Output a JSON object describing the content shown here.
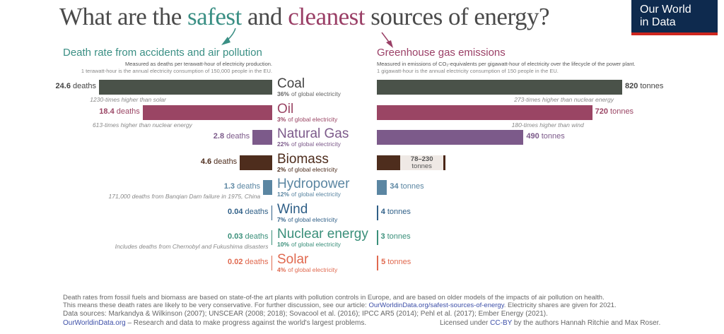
{
  "title": {
    "pre": "What are the ",
    "safest": "safest",
    "mid": " and ",
    "cleanest": "cleanest",
    "post": " sources of energy?"
  },
  "logo": {
    "line1": "Our World",
    "line2": "in Data"
  },
  "left_panel": {
    "title": "Death rate from accidents and air pollution",
    "sub1": "Measured as deaths per terawatt-hour of electricity production.",
    "sub2": "1 terawatt-hour is the annual electricity consumption of 150,000 people in the EU."
  },
  "right_panel": {
    "title": "Greenhouse gas emissions",
    "sub1": "Measured in emissions of CO₂-equivalents per gigawatt-hour of electricity over the lifecycle of the power plant.",
    "sub2": "1 gigawatt-hour is the annual electricity consumption of 150 people in the EU."
  },
  "chart_data": {
    "type": "bar",
    "units": {
      "deaths": "deaths",
      "emissions": "tonnes"
    },
    "share_suffix": "of global electricity",
    "categories": [
      "Coal",
      "Oil",
      "Natural Gas",
      "Biomass",
      "Hydropower",
      "Wind",
      "Nuclear energy",
      "Solar"
    ],
    "rows": [
      {
        "name": "Coal",
        "color": "#4a5249",
        "deaths": 24.6,
        "deaths_label": "24.6",
        "emissions": 820,
        "emissions_label": "820",
        "share": "36%",
        "death_note": "1230-times higher than solar",
        "emission_note": "273-times higher than nuclear energy"
      },
      {
        "name": "Oil",
        "color": "#9a4564",
        "deaths": 18.4,
        "deaths_label": "18.4",
        "emissions": 720,
        "emissions_label": "720",
        "share": "3%",
        "death_note": "613-times higher than nuclear energy",
        "emission_note": "180-times higher than wind"
      },
      {
        "name": "Natural Gas",
        "color": "#7c5a8a",
        "deaths": 2.8,
        "deaths_label": "2.8",
        "emissions": 490,
        "emissions_label": "490",
        "share": "22%"
      },
      {
        "name": "Biomass",
        "color": "#4e2d1d",
        "deaths": 4.6,
        "deaths_label": "4.6",
        "emissions": 78,
        "emissions_max": 230,
        "emissions_range": "78–230",
        "share": "2%"
      },
      {
        "name": "Hydropower",
        "color": "#5b86a2",
        "deaths": 1.3,
        "deaths_label": "1.3",
        "emissions": 34,
        "emissions_label": "34",
        "share": "12%",
        "death_note": "171,000 deaths from Banqian Dam failure in 1975, China"
      },
      {
        "name": "Wind",
        "color": "#2f5f87",
        "deaths": 0.04,
        "deaths_label": "0.04",
        "emissions": 4,
        "emissions_label": "4",
        "share": "7%"
      },
      {
        "name": "Nuclear energy",
        "color": "#3a8f7a",
        "deaths": 0.03,
        "deaths_label": "0.03",
        "emissions": 3,
        "emissions_label": "3",
        "share": "10%",
        "death_note": "Includes deaths from Chernobyl and Fukushima disasters"
      },
      {
        "name": "Solar",
        "color": "#e0694f",
        "deaths": 0.02,
        "deaths_label": "0.02",
        "emissions": 5,
        "emissions_label": "5",
        "share": "4%"
      }
    ]
  },
  "footer": {
    "line1": "Death rates from fossil fuels and biomass are based on state-of-the art plants with pollution controls in Europe, and are based on older models of the impacts of air pollution on health.",
    "line2a": "This means these death rates are likely to be very conservative. For further discussion, see our article: ",
    "line2link": "OurWorldinData.org/safest-sources-of-energy",
    "line2b": ". Electricity shares are given for 2021.",
    "line3": "Data sources: Markandya & Wilkinson (2007); UNSCEAR (2008; 2018); Sovacool et al. (2016); IPCC AR5 (2014); Pehl et al. (2017); Ember Energy (2021).",
    "owid_link": "OurWorldinData.org",
    "tagline": " – Research and data to make progress against the world's largest problems.",
    "license_pre": "Licensed under ",
    "license_link": "CC-BY",
    "license_post": " by the authors Hannah Ritchie and Max Roser."
  }
}
